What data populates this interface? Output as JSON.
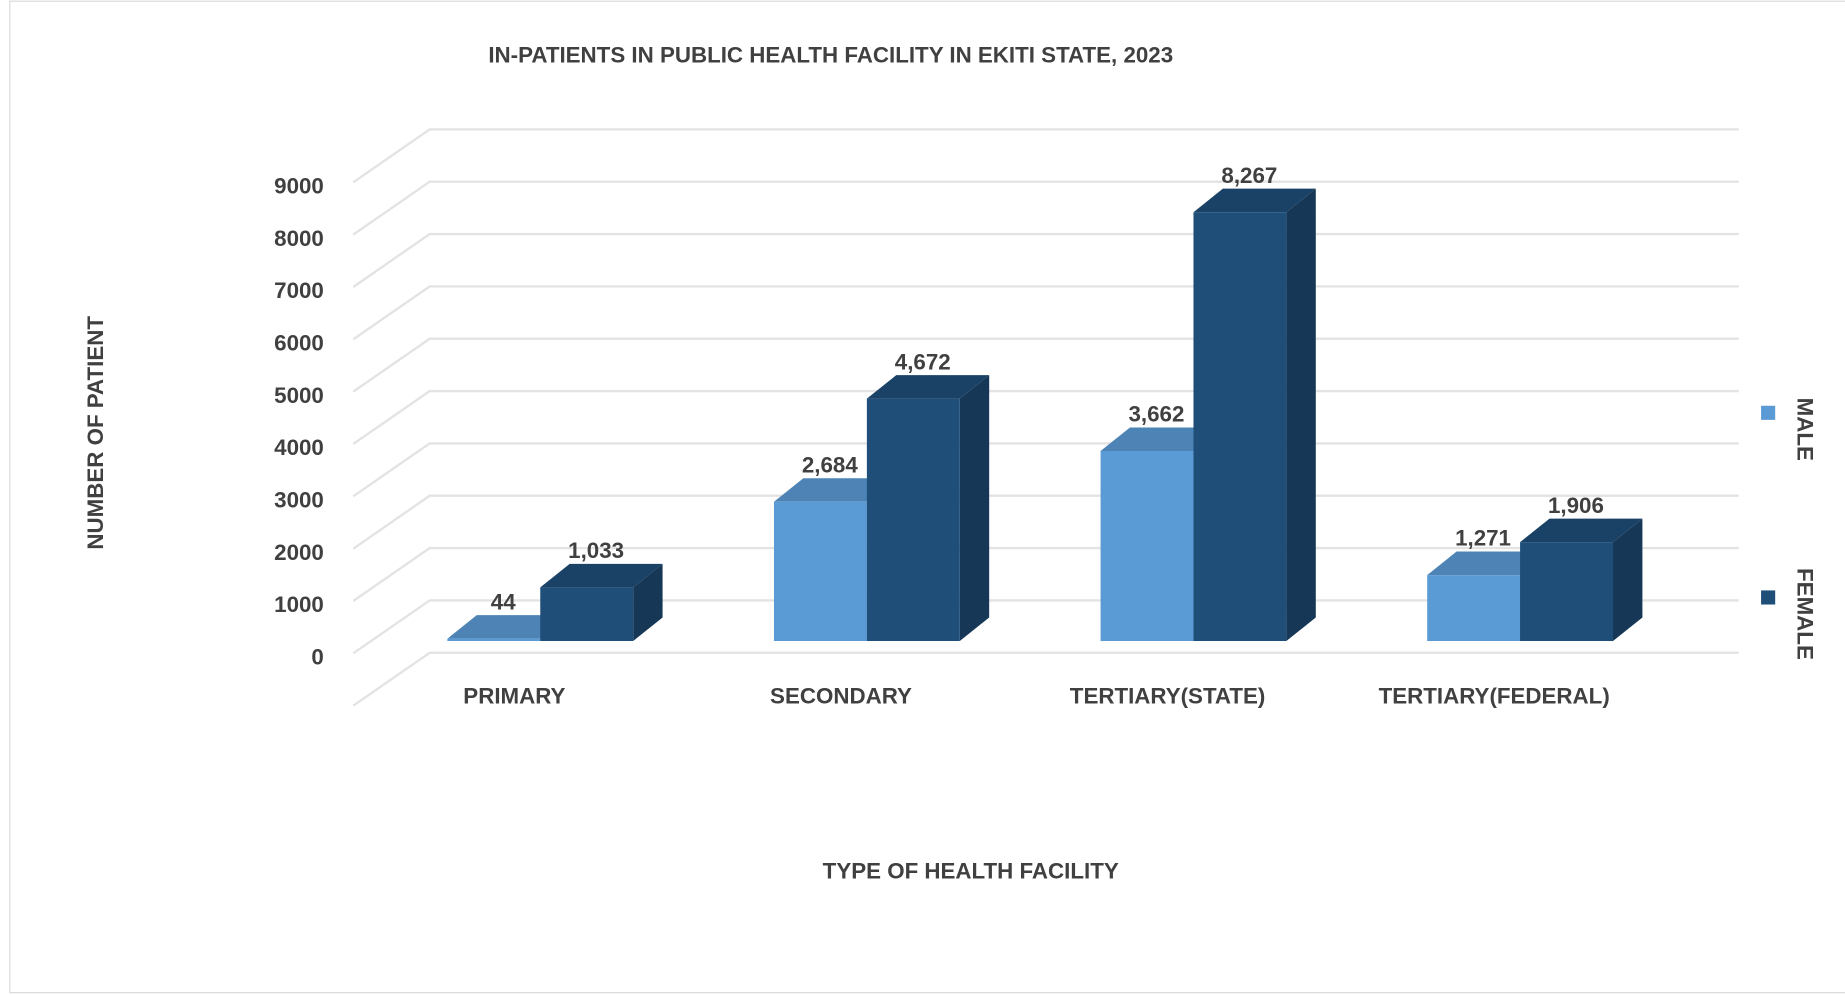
{
  "chart_data": {
    "type": "bar3d",
    "title": "IN-PATIENTS IN PUBLIC HEALTH FACILITY IN EKITI STATE, 2023",
    "xlabel": "TYPE OF HEALTH FACILITY",
    "ylabel": "NUMBER OF PATIENT",
    "categories": [
      "PRIMARY",
      "SECONDARY",
      "TERTIARY(STATE)",
      "TERTIARY(FEDERAL)"
    ],
    "series": [
      {
        "name": "MALE",
        "color": "#5b9bd5",
        "values": [
          44,
          2684,
          3662,
          1271
        ],
        "value_labels": [
          "44",
          "2,684",
          "3,662",
          "1,271"
        ]
      },
      {
        "name": "FEMALE",
        "color": "#1f4e79",
        "values": [
          1033,
          4672,
          8267,
          1906
        ],
        "value_labels": [
          "1,033",
          "4,672",
          "8,267",
          "1,906"
        ]
      }
    ],
    "ylim": [
      0,
      10000
    ],
    "yticks": [
      0,
      1000,
      2000,
      3000,
      4000,
      5000,
      6000,
      7000,
      8000,
      9000
    ],
    "grid": true,
    "legend": "right"
  }
}
